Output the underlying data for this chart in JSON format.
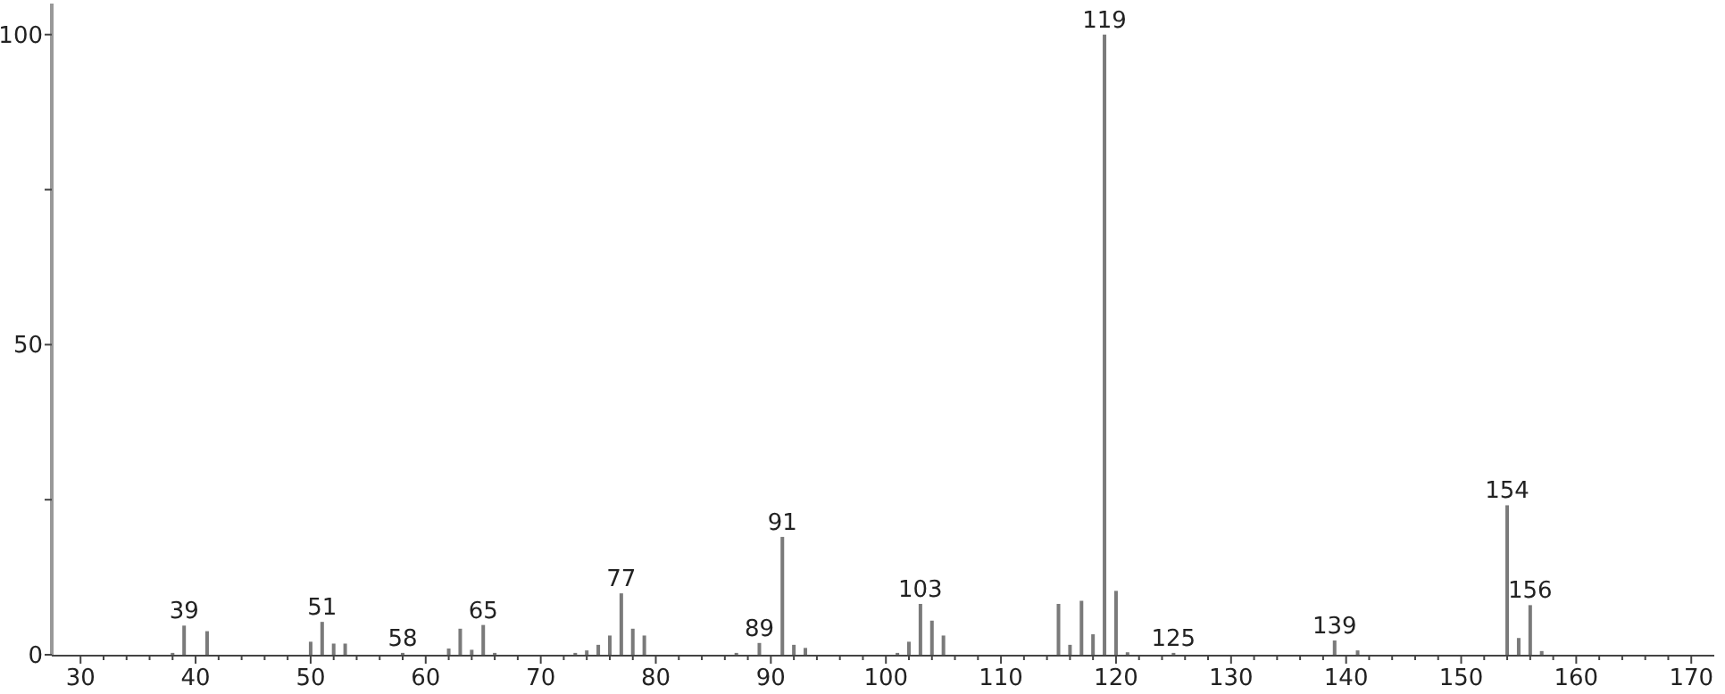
{
  "chart_data": {
    "type": "bar",
    "color": "#7a7a7a",
    "x": [
      38,
      39,
      41,
      50,
      51,
      52,
      53,
      58,
      62,
      63,
      64,
      65,
      66,
      73,
      74,
      75,
      76,
      77,
      78,
      79,
      87,
      89,
      91,
      92,
      93,
      101,
      102,
      103,
      104,
      105,
      115,
      116,
      117,
      118,
      119,
      120,
      121,
      125,
      139,
      141,
      154,
      155,
      156,
      157
    ],
    "values": [
      0.3,
      4.7,
      3.8,
      2.1,
      5.3,
      1.8,
      1.8,
      0.3,
      1.0,
      4.2,
      0.8,
      4.8,
      0.3,
      0.3,
      0.7,
      1.6,
      3.1,
      9.9,
      4.2,
      3.1,
      0.3,
      1.9,
      19,
      1.6,
      1.1,
      0.3,
      2.1,
      8.2,
      5.5,
      3.1,
      8.2,
      1.6,
      8.7,
      3.3,
      100,
      10.3,
      0.4,
      0.3,
      2.3,
      0.7,
      24.1,
      2.7,
      8.0,
      0.6
    ],
    "annotations": [
      {
        "text": "39",
        "x": 39,
        "y": 4.7
      },
      {
        "text": "51",
        "x": 51,
        "y": 5.3
      },
      {
        "text": "58",
        "x": 58,
        "y": 0.3
      },
      {
        "text": "65",
        "x": 65,
        "y": 4.8
      },
      {
        "text": "77",
        "x": 77,
        "y": 9.9
      },
      {
        "text": "89",
        "x": 89,
        "y": 1.9
      },
      {
        "text": "91",
        "x": 91,
        "y": 19
      },
      {
        "text": "103",
        "x": 103,
        "y": 8.2
      },
      {
        "text": "119",
        "x": 119,
        "y": 100
      },
      {
        "text": "125",
        "x": 125,
        "y": 0.3
      },
      {
        "text": "139",
        "x": 139,
        "y": 2.3
      },
      {
        "text": "154",
        "x": 154,
        "y": 24.1
      },
      {
        "text": "156",
        "x": 156,
        "y": 8.0
      }
    ],
    "xlim": [
      27.5,
      172
    ],
    "xticks": [
      30,
      {
        "value": 32,
        "label": null
      },
      {
        "value": 34,
        "label": null
      },
      {
        "value": 36,
        "label": null
      },
      {
        "value": 38,
        "label": null
      },
      40,
      {
        "value": 42,
        "label": null
      },
      {
        "value": 44,
        "label": null
      },
      {
        "value": 46,
        "label": null
      },
      {
        "value": 48,
        "label": null
      },
      50,
      {
        "value": 52,
        "label": null
      },
      {
        "value": 54,
        "label": null
      },
      {
        "value": 56,
        "label": null
      },
      {
        "value": 58,
        "label": null
      },
      60,
      {
        "value": 62,
        "label": null
      },
      {
        "value": 64,
        "label": null
      },
      {
        "value": 66,
        "label": null
      },
      {
        "value": 68,
        "label": null
      },
      70,
      {
        "value": 72,
        "label": null
      },
      {
        "value": 74,
        "label": null
      },
      {
        "value": 76,
        "label": null
      },
      {
        "value": 78,
        "label": null
      },
      80,
      {
        "value": 82,
        "label": null
      },
      {
        "value": 84,
        "label": null
      },
      {
        "value": 86,
        "label": null
      },
      {
        "value": 88,
        "label": null
      },
      90,
      {
        "value": 92,
        "label": null
      },
      {
        "value": 94,
        "label": null
      },
      {
        "value": 96,
        "label": null
      },
      {
        "value": 98,
        "label": null
      },
      100,
      {
        "value": 102,
        "label": null
      },
      {
        "value": 104,
        "label": null
      },
      {
        "value": 106,
        "label": null
      },
      {
        "value": 108,
        "label": null
      },
      110,
      {
        "value": 112,
        "label": null
      },
      {
        "value": 114,
        "label": null
      },
      {
        "value": 116,
        "label": null
      },
      {
        "value": 118,
        "label": null
      },
      120,
      {
        "value": 122,
        "label": null
      },
      {
        "value": 124,
        "label": null
      },
      {
        "value": 126,
        "label": null
      },
      {
        "value": 128,
        "label": null
      },
      130,
      {
        "value": 132,
        "label": null
      },
      {
        "value": 134,
        "label": null
      },
      {
        "value": 136,
        "label": null
      },
      {
        "value": 138,
        "label": null
      },
      140,
      {
        "value": 142,
        "label": null
      },
      {
        "value": 144,
        "label": null
      },
      {
        "value": 146,
        "label": null
      },
      {
        "value": 148,
        "label": null
      },
      150,
      {
        "value": 152,
        "label": null
      },
      {
        "value": 154,
        "label": null
      },
      {
        "value": 156,
        "label": null
      },
      {
        "value": 158,
        "label": null
      },
      160,
      {
        "value": 162,
        "label": null
      },
      {
        "value": 164,
        "label": null
      },
      {
        "value": 166,
        "label": null
      },
      {
        "value": 168,
        "label": null
      },
      170
    ],
    "ylim": [
      0,
      105
    ],
    "yticks": [
      0,
      {
        "value": 25,
        "label": null
      },
      50,
      {
        "value": 75,
        "label": null
      },
      100
    ],
    "grid": false
  }
}
